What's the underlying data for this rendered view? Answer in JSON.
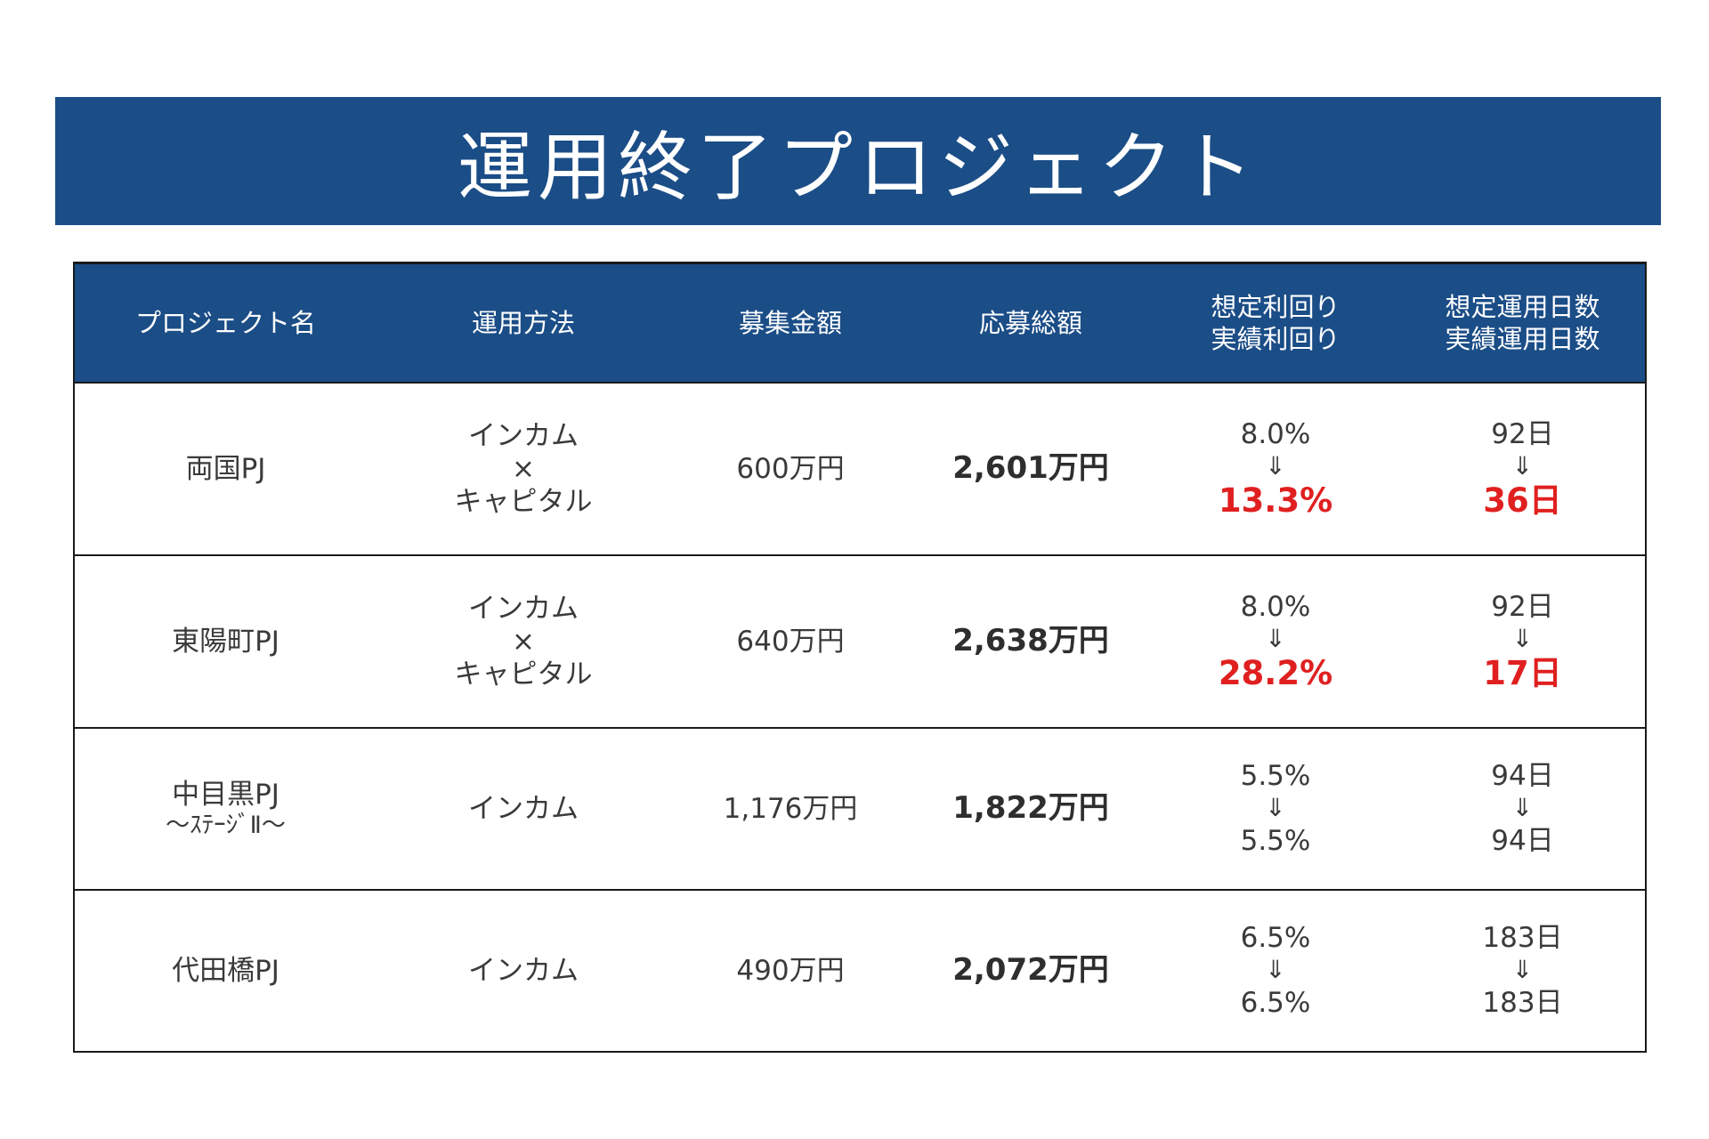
{
  "banner": {
    "title": "運用終了プロジェクト"
  },
  "colors": {
    "header_bg": "#1b4d87",
    "highlight": "#e02020"
  },
  "table": {
    "headers": {
      "name": "プロジェクト名",
      "method": "運用方法",
      "recruit_amount": "募集金額",
      "applied_amount": "応募総額",
      "yield_line1": "想定利回り",
      "yield_line2": "実績利回り",
      "days_line1": "想定運用日数",
      "days_line2": "実績運用日数"
    },
    "arrow_symbol": "⇓",
    "rows": [
      {
        "name": "両国PJ",
        "name_sub": "",
        "method": [
          "インカム",
          "×",
          "キャピタル"
        ],
        "recruit_amount": "600万円",
        "applied_amount": "2,601万円",
        "yield_planned": "8.0%",
        "yield_actual": "13.3%",
        "yield_highlight": true,
        "days_planned": "92日",
        "days_actual": "36日",
        "days_highlight": true
      },
      {
        "name": "東陽町PJ",
        "name_sub": "",
        "method": [
          "インカム",
          "×",
          "キャピタル"
        ],
        "recruit_amount": "640万円",
        "applied_amount": "2,638万円",
        "yield_planned": "8.0%",
        "yield_actual": "28.2%",
        "yield_highlight": true,
        "days_planned": "92日",
        "days_actual": "17日",
        "days_highlight": true
      },
      {
        "name": "中目黒PJ",
        "name_sub": "～ｽﾃｰｼﾞⅡ～",
        "method": [
          "インカム"
        ],
        "recruit_amount": "1,176万円",
        "applied_amount": "1,822万円",
        "yield_planned": "5.5%",
        "yield_actual": "5.5%",
        "yield_highlight": false,
        "days_planned": "94日",
        "days_actual": "94日",
        "days_highlight": false
      },
      {
        "name": "代田橋PJ",
        "name_sub": "",
        "method": [
          "インカム"
        ],
        "recruit_amount": "490万円",
        "applied_amount": "2,072万円",
        "yield_planned": "6.5%",
        "yield_actual": "6.5%",
        "yield_highlight": false,
        "days_planned": "183日",
        "days_actual": "183日",
        "days_highlight": false
      }
    ]
  }
}
